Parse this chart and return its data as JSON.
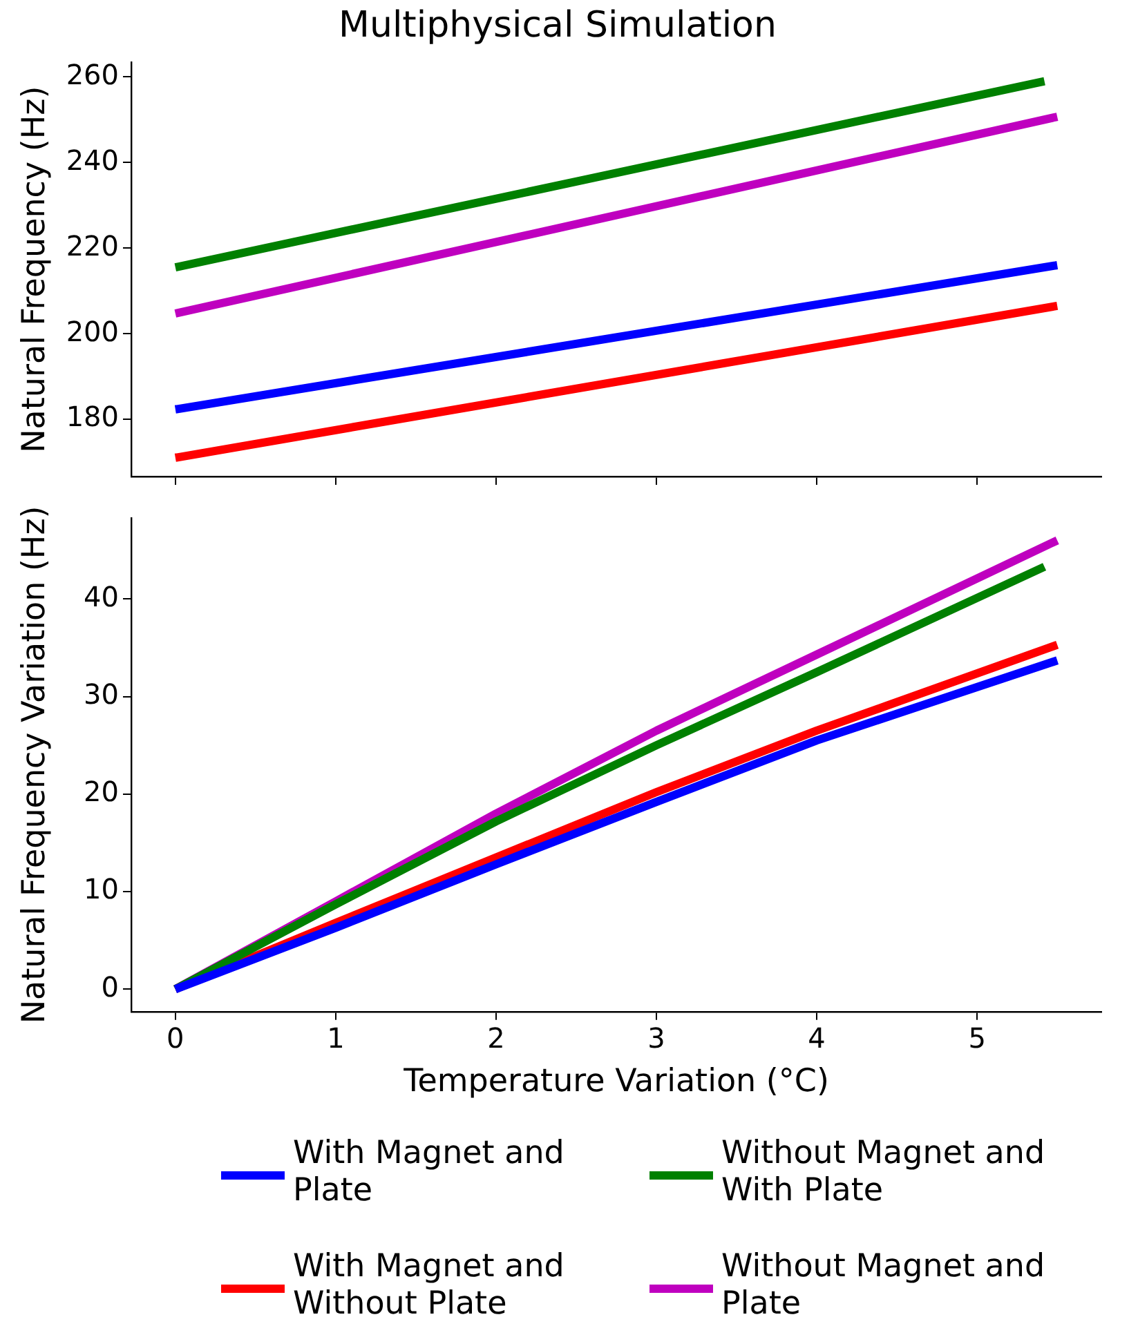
{
  "chart_data": [
    {
      "type": "line",
      "title": "Multiphysical Simulation",
      "ylabel": "Natural Frequency (Hz)",
      "xlim": [
        -0.275,
        5.775
      ],
      "xticks": [
        0,
        1,
        2,
        3,
        4,
        5
      ],
      "ylim": [
        166.6,
        263.4
      ],
      "yticks": [
        180,
        200,
        220,
        240,
        260
      ],
      "tick_labels": "y",
      "grid": false,
      "legend": false,
      "series": [
        {
          "color": "#0000ff",
          "x": [
            0,
            5.5
          ],
          "values": [
            182.3,
            216
          ]
        },
        {
          "color": "#008000",
          "x": [
            0,
            5.42
          ],
          "values": [
            215.5,
            259
          ]
        },
        {
          "color": "#ff0000",
          "x": [
            0,
            5.5
          ],
          "values": [
            171,
            206.5
          ]
        },
        {
          "color": "#bf00bf",
          "x": [
            0,
            5.5
          ],
          "values": [
            204.7,
            250.7
          ]
        }
      ]
    },
    {
      "type": "line",
      "xlabel": "Temperature Variation (°C)",
      "ylabel": "Natural Frequency Variation (Hz)",
      "xlim": [
        -0.275,
        5.775
      ],
      "xticks": [
        0,
        1,
        2,
        3,
        4,
        5
      ],
      "ylim": [
        -2.3,
        48.3
      ],
      "yticks": [
        0,
        10,
        20,
        30,
        40
      ],
      "grid": false,
      "legend": "bottom",
      "series": [
        {
          "name": "With Magnet and Plate",
          "color": "#0000ff",
          "x": [
            0,
            1,
            2,
            3,
            4,
            5.5
          ],
          "values": [
            0,
            6.3,
            12.8,
            19.2,
            25.5,
            33.7
          ]
        },
        {
          "name": "Without Magnet and With Plate",
          "color": "#008000",
          "x": [
            0,
            1,
            2,
            3,
            4,
            5.42
          ],
          "values": [
            0,
            8.7,
            17.2,
            25,
            32.5,
            43.3
          ]
        },
        {
          "name": "With Magnet and Without Plate",
          "color": "#ff0000",
          "x": [
            0,
            1,
            2,
            3,
            4,
            5.5
          ],
          "values": [
            0,
            6.8,
            13.5,
            20.2,
            26.5,
            35.3
          ]
        },
        {
          "name": "Without Magnet and Plate",
          "color": "#bf00bf",
          "x": [
            0,
            1,
            2,
            3,
            4,
            5.5
          ],
          "values": [
            0,
            9,
            18,
            26.5,
            34.3,
            46
          ]
        }
      ]
    }
  ]
}
